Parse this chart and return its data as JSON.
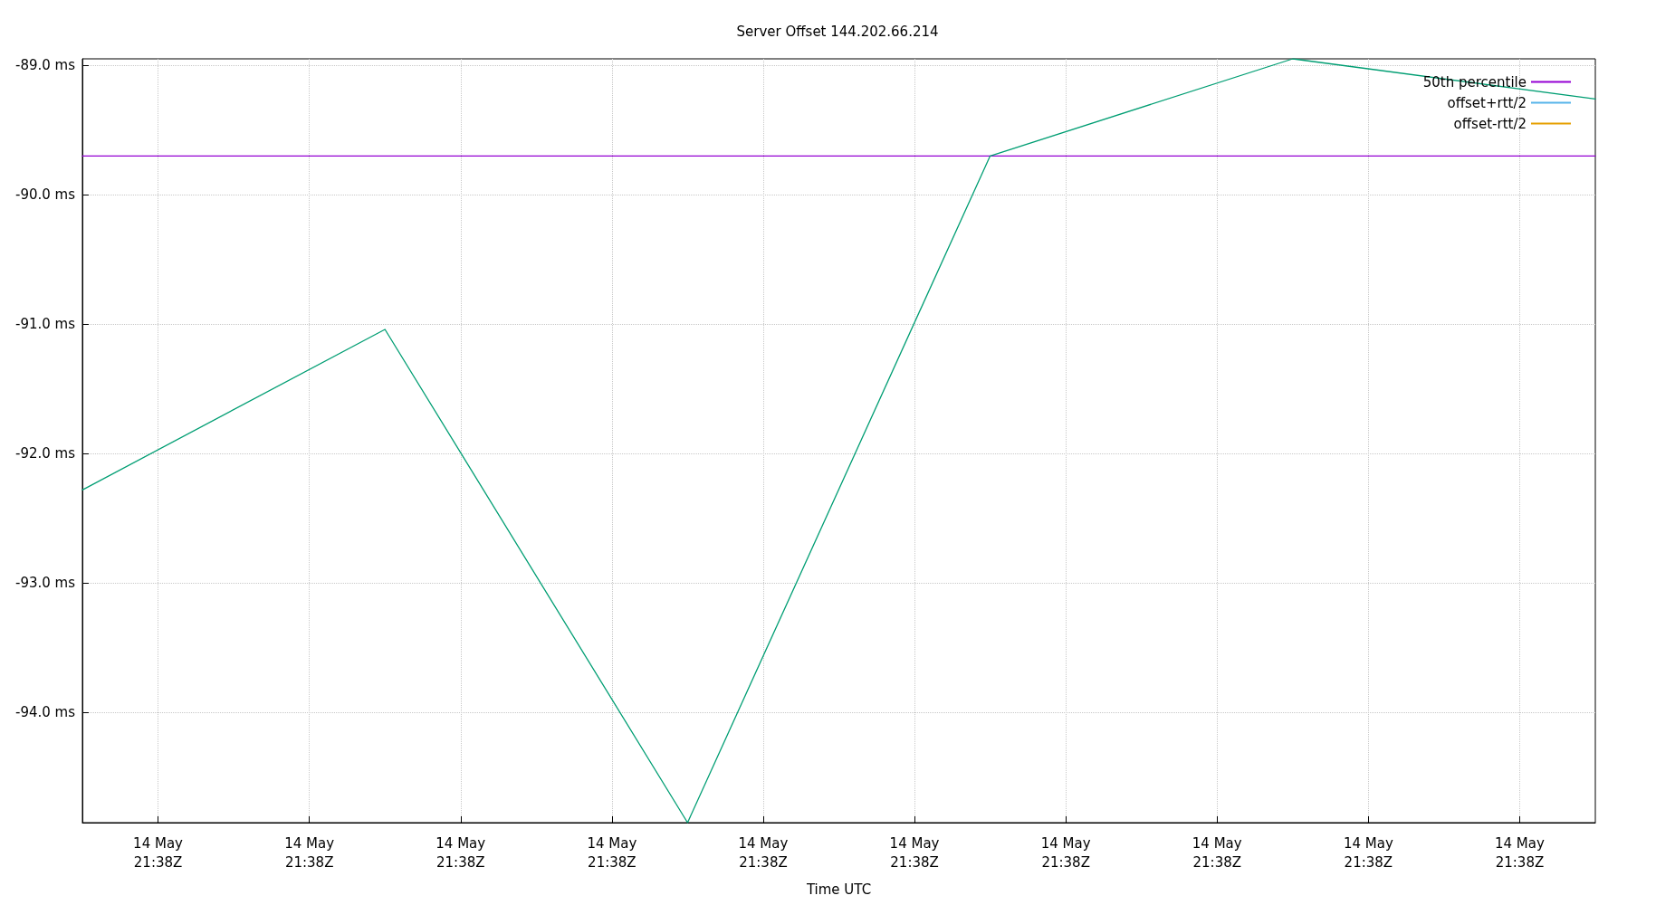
{
  "chart_data": {
    "type": "line",
    "title": "Server Offset 144.202.66.214",
    "xlabel": "Time UTC",
    "categories": [
      null,
      "14 May\n21:38Z",
      null,
      "14 May\n21:38Z",
      null,
      "14 May\n21:38Z",
      null,
      "14 May\n21:38Z",
      null,
      "14 May\n21:38Z",
      null,
      "14 May\n21:38Z",
      null,
      "14 May\n21:38Z",
      null,
      "14 May\n21:38Z",
      null,
      "14 May\n21:38Z",
      null,
      "14 May\n21:38Z",
      null
    ],
    "series": [
      {
        "name": "50th percentile",
        "color": "#9400d3",
        "values": [
          -89.7,
          null,
          null,
          null,
          null,
          null,
          null,
          null,
          null,
          null,
          null,
          null,
          null,
          null,
          null,
          null,
          null,
          null,
          null,
          null,
          -89.7
        ]
      },
      {
        "color": "#009e73",
        "values": [
          -92.28,
          null,
          null,
          null,
          -91.04,
          null,
          null,
          null,
          -94.85,
          null,
          null,
          null,
          -89.7,
          null,
          null,
          null,
          -88.95,
          null,
          null,
          null,
          -89.26
        ]
      },
      {
        "name": "offset+rtt/2",
        "color": "#56b4e9",
        "values": [
          null,
          null,
          null,
          null,
          null,
          null,
          null,
          null,
          null,
          null,
          null,
          null,
          null,
          null,
          null,
          null,
          null,
          null,
          null,
          null,
          null
        ]
      },
      {
        "name": "offset-rtt/2",
        "color": "#e69f00",
        "values": [
          null,
          null,
          null,
          null,
          null,
          null,
          null,
          null,
          null,
          null,
          null,
          null,
          null,
          null,
          null,
          null,
          null,
          null,
          null,
          null,
          null
        ]
      }
    ],
    "ylim": [
      -94.85,
      -88.95
    ],
    "yticks": [
      {
        "value": -94,
        "label": "-94.0 ms"
      },
      {
        "value": -93,
        "label": "-93.0 ms"
      },
      {
        "value": -92,
        "label": "-92.0 ms"
      },
      {
        "value": -91,
        "label": "-91.0 ms"
      },
      {
        "value": -90,
        "label": "-90.0 ms"
      },
      {
        "value": -89,
        "label": "-89.0 ms"
      }
    ],
    "grid": true,
    "legend": "top right",
    "marker": "none",
    "line_style": "solid"
  }
}
